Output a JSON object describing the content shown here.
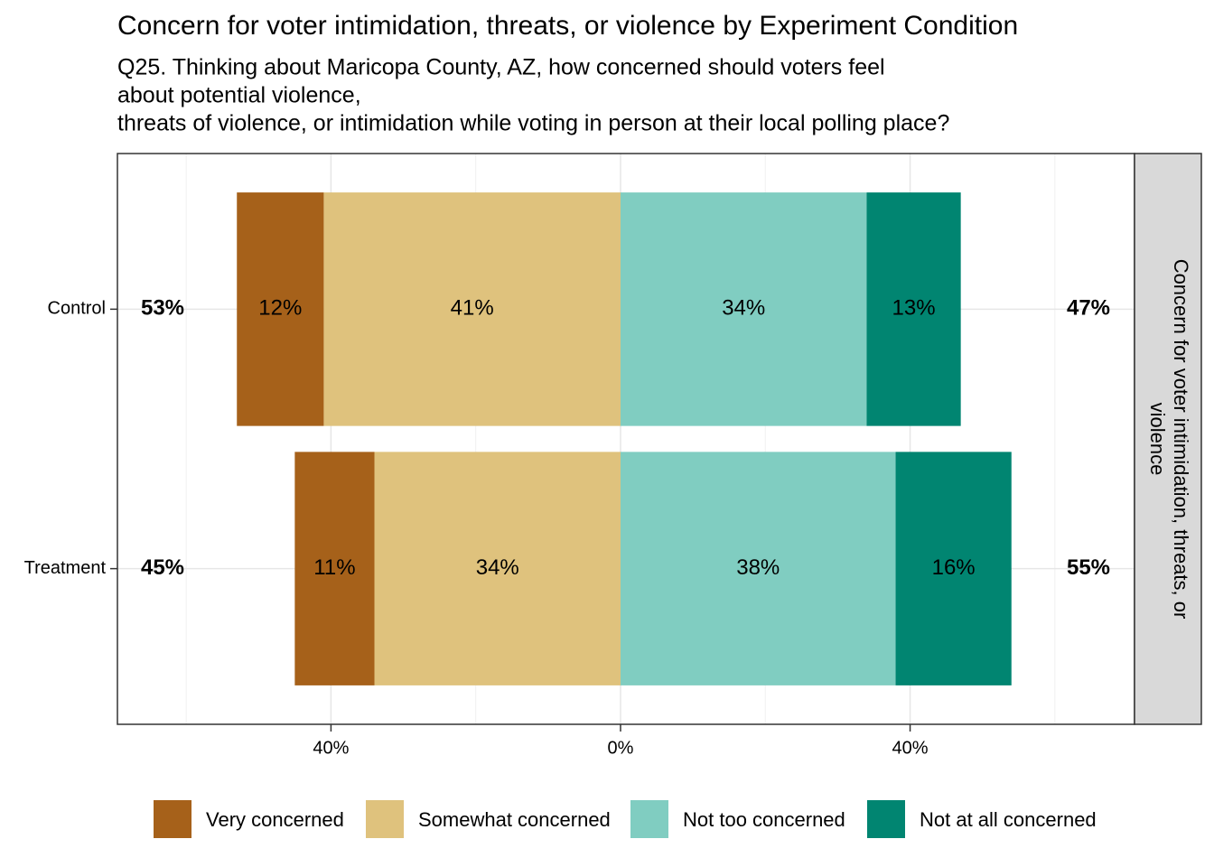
{
  "chart_data": {
    "type": "diverging_bar",
    "title": "Concern for voter intimidation, threats, or violence by Experiment Condition",
    "subtitle": [
      "Q25. Thinking about Maricopa County, AZ, how concerned should voters feel",
      "about potential violence,",
      "threats of violence, or intimidation while voting in person at their local polling place?"
    ],
    "strip_label": [
      "Concern for voter intimidation, threats, or",
      "violence"
    ],
    "categories": [
      "Control",
      "Treatment"
    ],
    "series": [
      {
        "name": "Very concerned",
        "color": "#a6611a",
        "side": "left",
        "label_color": "#ffffff",
        "values": [
          12,
          11
        ],
        "value_labels": [
          "12%",
          "11%"
        ]
      },
      {
        "name": "Somewhat concerned",
        "color": "#dfc27d",
        "side": "left",
        "label_color": "#000000",
        "values": [
          41,
          34
        ],
        "value_labels": [
          "41%",
          "34%"
        ]
      },
      {
        "name": "Not too concerned",
        "color": "#80cdc1",
        "side": "right",
        "label_color": "#000000",
        "values": [
          34,
          38
        ],
        "value_labels": [
          "34%",
          "38%"
        ]
      },
      {
        "name": "Not at all concerned",
        "color": "#018571",
        "side": "right",
        "label_color": "#ffffff",
        "values": [
          13,
          16
        ],
        "value_labels": [
          "13%",
          "16%"
        ]
      }
    ],
    "totals_left": {
      "values": [
        53,
        45
      ],
      "value_labels": [
        "53%",
        "45%"
      ]
    },
    "totals_right": {
      "values": [
        47,
        55
      ],
      "value_labels": [
        "47%",
        "55%"
      ]
    },
    "xlim": [
      -69.5,
      71
    ],
    "xticks": [
      {
        "value": -40,
        "label": "40%"
      },
      {
        "value": 0,
        "label": "0%"
      },
      {
        "value": 40,
        "label": "40%"
      }
    ],
    "xminor": [
      -60,
      -20,
      20,
      60
    ],
    "grid": true,
    "legend": "bottom"
  }
}
